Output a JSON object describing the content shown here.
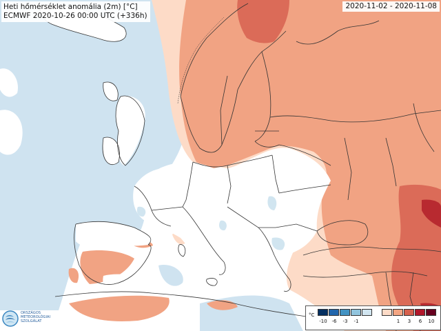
{
  "title": {
    "line1": "Heti hőmérséklet anomália (2m) [°C]",
    "line2": "ECMWF 2020-10-26 00:00 UTC (+336h)"
  },
  "date_range": "2020-11-02 - 2020-11-08",
  "logo": {
    "line1": "ORSZÁGOS",
    "line2": "METEOROLÓGIAI",
    "line3": "SZOLGÁLAT"
  },
  "legend": {
    "unit": "°C",
    "negative": [
      {
        "label": "-10",
        "color": "#053061"
      },
      {
        "label": "-6",
        "color": "#2166ac"
      },
      {
        "label": "-3",
        "color": "#4393c3"
      },
      {
        "label": "-1",
        "color": "#92c5de"
      },
      {
        "label": "",
        "color": "#d1e5f0"
      }
    ],
    "positive": [
      {
        "label": "",
        "color": "#fddbc7"
      },
      {
        "label": "1",
        "color": "#f4a582"
      },
      {
        "label": "3",
        "color": "#d6604d"
      },
      {
        "label": "6",
        "color": "#b2182b"
      },
      {
        "label": "10",
        "color": "#67001f"
      }
    ]
  },
  "colors": {
    "warm_light": "#fddbc7",
    "warm": "#f4a582",
    "warm_strong": "#e27a5f",
    "hot": "#d6604d",
    "very_hot": "#b2182b",
    "cool_light": "#d1e5f0",
    "cool": "#bcd8ea",
    "land_neutral": "#ffffff",
    "borders": "#333333"
  }
}
